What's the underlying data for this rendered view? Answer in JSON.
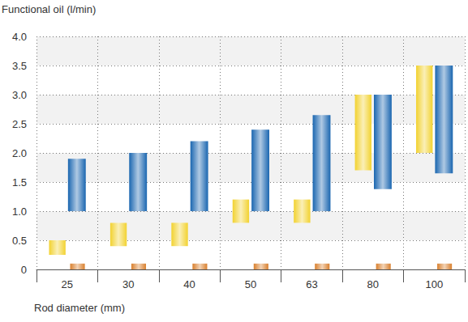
{
  "chart_data": {
    "type": "bar",
    "y_label": "Functional oil (l/min)",
    "x_label": "Rod diameter (mm)",
    "categories": [
      "25",
      "30",
      "40",
      "50",
      "63",
      "80",
      "100"
    ],
    "series": [
      {
        "color": "#f2d230",
        "values": [
          [
            0.25,
            0.5
          ],
          [
            0.4,
            0.8
          ],
          [
            0.4,
            0.8
          ],
          [
            0.8,
            1.2
          ],
          [
            0.8,
            1.2
          ],
          [
            1.7,
            3.0
          ],
          [
            2.0,
            3.5
          ]
        ]
      },
      {
        "color": "#1a66b0",
        "values": [
          [
            1.0,
            1.9
          ],
          [
            1.0,
            2.0
          ],
          [
            1.0,
            2.2
          ],
          [
            1.0,
            2.4
          ],
          [
            1.0,
            2.65
          ],
          [
            1.38,
            3.0
          ],
          [
            1.65,
            3.5
          ]
        ]
      },
      {
        "color": "#d9802e",
        "values": [
          [
            0,
            0.1
          ],
          [
            0,
            0.1
          ],
          [
            0,
            0.1
          ],
          [
            0,
            0.1
          ],
          [
            0,
            0.1
          ],
          [
            0,
            0.1
          ],
          [
            0,
            0.1
          ]
        ]
      }
    ],
    "ylim": [
      0,
      4
    ],
    "yticks": [
      0,
      0.5,
      {
        "value": 1,
        "label": "1.0"
      },
      1.5,
      {
        "value": 2,
        "label": "2.0"
      },
      2.5,
      {
        "value": 3,
        "label": "3.0"
      },
      3.5,
      {
        "value": 4,
        "label": "4.0"
      }
    ],
    "grid": true
  }
}
